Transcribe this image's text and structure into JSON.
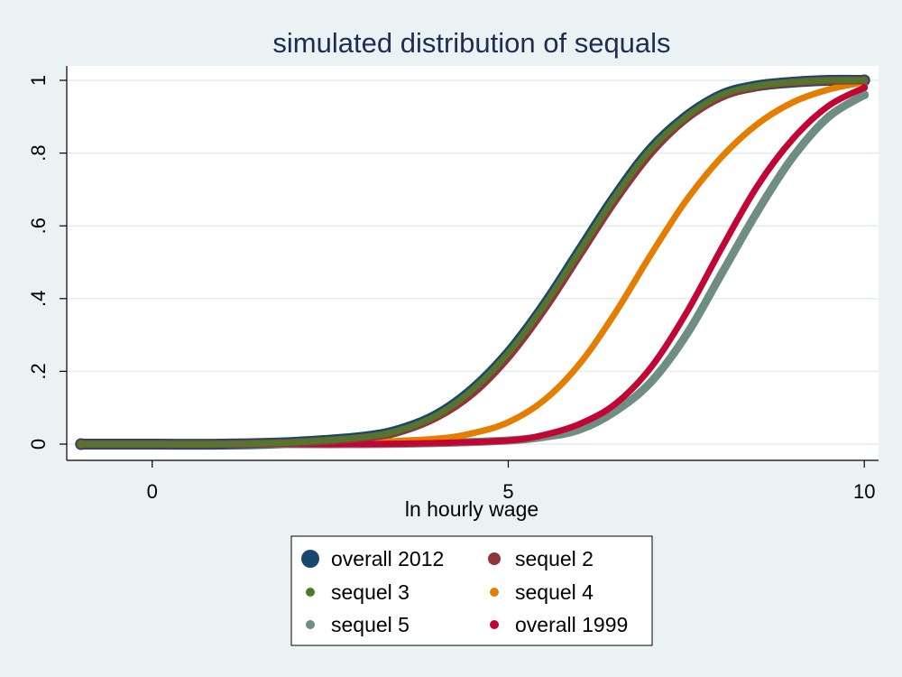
{
  "chart_data": {
    "type": "line",
    "title": "simulated distribution of sequals",
    "xlabel": "ln hourly wage",
    "ylabel": "",
    "xlim": [
      -1.2,
      10.2
    ],
    "ylim": [
      0,
      1
    ],
    "xticks": [
      0,
      5,
      10
    ],
    "xtick_labels": [
      "0",
      "5",
      "10"
    ],
    "yticks": [
      0,
      0.2,
      0.4,
      0.6,
      0.8,
      1
    ],
    "ytick_labels": [
      "0",
      ".2",
      ".4",
      ".6",
      ".8",
      "1"
    ],
    "grid": "horizontal",
    "legend_position": "bottom",
    "series": [
      {
        "name": "overall 2012",
        "color": "#1a476f",
        "x": [
          -1,
          0,
          1,
          2,
          3,
          3.5,
          4,
          4.5,
          5,
          5.5,
          6,
          6.5,
          7,
          7.5,
          8,
          8.5,
          9,
          9.5,
          10
        ],
        "y": [
          0,
          0,
          0,
          0.005,
          0.02,
          0.04,
          0.08,
          0.15,
          0.25,
          0.38,
          0.53,
          0.68,
          0.81,
          0.9,
          0.96,
          0.985,
          0.995,
          1,
          1
        ]
      },
      {
        "name": "sequel 2",
        "color": "#90353b",
        "x": [
          -1,
          0,
          1,
          2,
          3,
          3.5,
          4,
          4.5,
          5,
          5.5,
          6,
          6.5,
          7,
          7.5,
          8,
          8.5,
          9,
          9.5,
          10
        ],
        "y": [
          0,
          0,
          0,
          0.004,
          0.018,
          0.037,
          0.075,
          0.14,
          0.24,
          0.37,
          0.52,
          0.67,
          0.8,
          0.895,
          0.955,
          0.983,
          0.994,
          0.999,
          1
        ]
      },
      {
        "name": "sequel 3",
        "color": "#55752f",
        "x": [
          -1,
          0,
          1,
          2,
          3,
          3.5,
          4,
          4.5,
          5,
          5.5,
          6,
          6.5,
          7,
          7.5,
          8,
          8.5,
          9,
          9.5,
          10
        ],
        "y": [
          0,
          0,
          0,
          0.005,
          0.02,
          0.04,
          0.08,
          0.15,
          0.25,
          0.38,
          0.53,
          0.68,
          0.81,
          0.9,
          0.96,
          0.985,
          0.995,
          1,
          1
        ]
      },
      {
        "name": "sequel 4",
        "color": "#e37e00",
        "x": [
          -1,
          0,
          1,
          2,
          3,
          4,
          4.5,
          5,
          5.5,
          6,
          6.5,
          7,
          7.5,
          8,
          8.5,
          9,
          9.5,
          10
        ],
        "y": [
          0,
          0,
          0,
          0,
          0.005,
          0.015,
          0.03,
          0.06,
          0.12,
          0.22,
          0.36,
          0.52,
          0.67,
          0.79,
          0.88,
          0.94,
          0.975,
          0.995
        ]
      },
      {
        "name": "sequel 5",
        "color": "#6e8e84",
        "x": [
          -1,
          0,
          1,
          2,
          3,
          4,
          5,
          5.5,
          6,
          6.5,
          7,
          7.5,
          8,
          8.5,
          9,
          9.5,
          10
        ],
        "y": [
          0,
          0,
          0,
          0,
          0,
          0.003,
          0.01,
          0.02,
          0.04,
          0.09,
          0.17,
          0.3,
          0.47,
          0.64,
          0.79,
          0.9,
          0.96
        ]
      },
      {
        "name": "overall 1999",
        "color": "#c10534",
        "x": [
          -1,
          0,
          1,
          2,
          3,
          4,
          5,
          5.5,
          6,
          6.5,
          7,
          7.5,
          8,
          8.5,
          9,
          9.5,
          10
        ],
        "y": [
          0,
          0,
          0,
          0,
          0,
          0.003,
          0.01,
          0.025,
          0.055,
          0.11,
          0.21,
          0.36,
          0.54,
          0.71,
          0.84,
          0.93,
          0.98
        ]
      }
    ]
  }
}
